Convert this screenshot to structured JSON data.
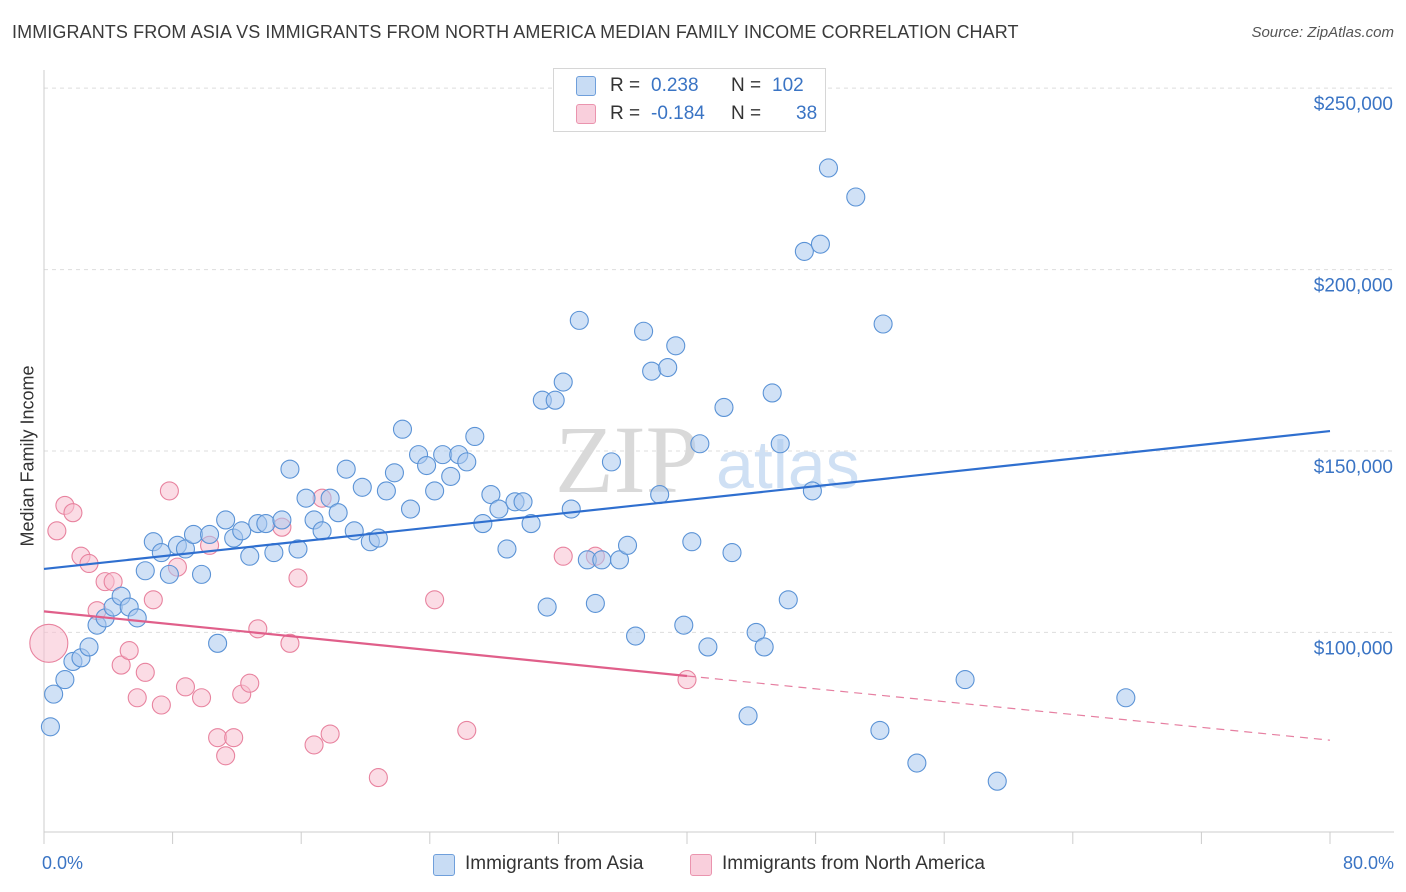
{
  "header": {
    "title": "IMMIGRANTS FROM ASIA VS IMMIGRANTS FROM NORTH AMERICA MEDIAN FAMILY INCOME CORRELATION CHART",
    "source": "Source: ZipAtlas.com"
  },
  "watermark": {
    "zip": "ZIP",
    "atlas": "atlas"
  },
  "legend_stats": {
    "asia": {
      "r_label": "R =",
      "r_value": "0.238",
      "n_label": "N =",
      "n_value": "102"
    },
    "na": {
      "r_label": "R =",
      "r_value": "-0.184",
      "n_label": "N =",
      "n_value": "38"
    }
  },
  "colors": {
    "asia_fill": "#a9c9ef",
    "asia_stroke": "#5b93d6",
    "asia_line": "#2f6fcf",
    "na_fill": "#f7bfd0",
    "na_stroke": "#e8839f",
    "na_line": "#e05f8a",
    "axis_text": "#3a74c4",
    "grid": "#dddddd"
  },
  "chart_data": {
    "type": "scatter",
    "title": "IMMIGRANTS FROM ASIA VS IMMIGRANTS FROM NORTH AMERICA MEDIAN FAMILY INCOME CORRELATION CHART",
    "xlabel": "",
    "ylabel": "Median Family Income",
    "x_tick_labels": [
      "0.0%",
      "80.0%"
    ],
    "y_tick_labels": [
      "$100,000",
      "$150,000",
      "$200,000",
      "$250,000"
    ],
    "y_ticks": [
      100000,
      150000,
      200000,
      250000
    ],
    "xlim": [
      0,
      80
    ],
    "ylim": [
      45000,
      255000
    ],
    "grid": true,
    "legend_placement": "bottom",
    "series": [
      {
        "name": "Immigrants from Asia",
        "trend": {
          "x0": 0,
          "y0": 117500,
          "x1": 80,
          "y1": 155500
        },
        "points": [
          [
            0.4,
            74000
          ],
          [
            0.6,
            83000
          ],
          [
            1.3,
            87000
          ],
          [
            1.8,
            92000
          ],
          [
            2.3,
            93000
          ],
          [
            2.8,
            96000
          ],
          [
            3.3,
            102000
          ],
          [
            3.8,
            104000
          ],
          [
            4.3,
            107000
          ],
          [
            4.8,
            110000
          ],
          [
            5.3,
            107000
          ],
          [
            5.8,
            104000
          ],
          [
            6.3,
            117000
          ],
          [
            6.8,
            125000
          ],
          [
            7.3,
            122000
          ],
          [
            7.8,
            116000
          ],
          [
            8.3,
            124000
          ],
          [
            8.8,
            123000
          ],
          [
            9.3,
            127000
          ],
          [
            9.8,
            116000
          ],
          [
            10.3,
            127000
          ],
          [
            10.8,
            97000
          ],
          [
            11.3,
            131000
          ],
          [
            11.8,
            126000
          ],
          [
            12.3,
            128000
          ],
          [
            12.8,
            121000
          ],
          [
            13.3,
            130000
          ],
          [
            13.8,
            130000
          ],
          [
            14.3,
            122000
          ],
          [
            14.8,
            131000
          ],
          [
            15.3,
            145000
          ],
          [
            15.8,
            123000
          ],
          [
            16.3,
            137000
          ],
          [
            16.8,
            131000
          ],
          [
            17.3,
            128000
          ],
          [
            17.8,
            137000
          ],
          [
            18.3,
            133000
          ],
          [
            18.8,
            145000
          ],
          [
            19.3,
            128000
          ],
          [
            19.8,
            140000
          ],
          [
            20.3,
            125000
          ],
          [
            20.8,
            126000
          ],
          [
            21.3,
            139000
          ],
          [
            21.8,
            144000
          ],
          [
            22.3,
            156000
          ],
          [
            22.8,
            134000
          ],
          [
            23.3,
            149000
          ],
          [
            23.8,
            146000
          ],
          [
            24.3,
            139000
          ],
          [
            24.8,
            149000
          ],
          [
            25.3,
            143000
          ],
          [
            25.8,
            149000
          ],
          [
            26.3,
            147000
          ],
          [
            26.8,
            154000
          ],
          [
            27.3,
            130000
          ],
          [
            27.8,
            138000
          ],
          [
            28.3,
            134000
          ],
          [
            28.8,
            123000
          ],
          [
            29.3,
            136000
          ],
          [
            29.8,
            136000
          ],
          [
            30.3,
            130000
          ],
          [
            31.0,
            164000
          ],
          [
            31.3,
            107000
          ],
          [
            31.8,
            164000
          ],
          [
            32.3,
            169000
          ],
          [
            32.8,
            134000
          ],
          [
            33.3,
            186000
          ],
          [
            33.8,
            120000
          ],
          [
            34.3,
            108000
          ],
          [
            34.7,
            120000
          ],
          [
            35.3,
            147000
          ],
          [
            35.8,
            120000
          ],
          [
            36.3,
            124000
          ],
          [
            36.8,
            99000
          ],
          [
            37.3,
            183000
          ],
          [
            37.8,
            172000
          ],
          [
            38.3,
            138000
          ],
          [
            38.8,
            173000
          ],
          [
            39.3,
            179000
          ],
          [
            39.8,
            102000
          ],
          [
            40.3,
            125000
          ],
          [
            40.8,
            152000
          ],
          [
            41.3,
            96000
          ],
          [
            42.3,
            162000
          ],
          [
            42.8,
            122000
          ],
          [
            43.8,
            77000
          ],
          [
            44.3,
            100000
          ],
          [
            44.8,
            96000
          ],
          [
            45.3,
            166000
          ],
          [
            45.8,
            152000
          ],
          [
            46.3,
            109000
          ],
          [
            47.3,
            205000
          ],
          [
            47.8,
            139000
          ],
          [
            48.3,
            207000
          ],
          [
            48.8,
            228000
          ],
          [
            50.5,
            220000
          ],
          [
            52.2,
            185000
          ],
          [
            52.0,
            73000
          ],
          [
            54.3,
            64000
          ],
          [
            57.3,
            87000
          ],
          [
            59.3,
            59000
          ],
          [
            67.3,
            82000
          ]
        ]
      },
      {
        "name": "Immigrants from North America",
        "trend": {
          "x0": 0,
          "y0": 105800,
          "x1": 40,
          "y1": 88000,
          "dashed_to_x": 80,
          "dashed_to_y": 70300
        },
        "points": [
          [
            0.3,
            97000
          ],
          [
            0.8,
            128000
          ],
          [
            1.3,
            135000
          ],
          [
            1.8,
            133000
          ],
          [
            2.3,
            121000
          ],
          [
            2.8,
            119000
          ],
          [
            3.3,
            106000
          ],
          [
            3.8,
            114000
          ],
          [
            4.3,
            114000
          ],
          [
            4.8,
            91000
          ],
          [
            5.3,
            95000
          ],
          [
            5.8,
            82000
          ],
          [
            6.3,
            89000
          ],
          [
            6.8,
            109000
          ],
          [
            7.3,
            80000
          ],
          [
            7.8,
            139000
          ],
          [
            8.3,
            118000
          ],
          [
            8.8,
            85000
          ],
          [
            9.8,
            82000
          ],
          [
            10.3,
            124000
          ],
          [
            10.8,
            71000
          ],
          [
            11.3,
            66000
          ],
          [
            11.8,
            71000
          ],
          [
            12.3,
            83000
          ],
          [
            12.8,
            86000
          ],
          [
            13.3,
            101000
          ],
          [
            14.8,
            129000
          ],
          [
            15.3,
            97000
          ],
          [
            15.8,
            115000
          ],
          [
            16.8,
            69000
          ],
          [
            17.3,
            137000
          ],
          [
            17.8,
            72000
          ],
          [
            20.8,
            60000
          ],
          [
            24.3,
            109000
          ],
          [
            26.3,
            73000
          ],
          [
            32.3,
            121000
          ],
          [
            34.3,
            121000
          ],
          [
            40.0,
            87000
          ]
        ]
      }
    ]
  },
  "bottom_legend": {
    "asia_label": "Immigrants from Asia",
    "na_label": "Immigrants from North America"
  }
}
